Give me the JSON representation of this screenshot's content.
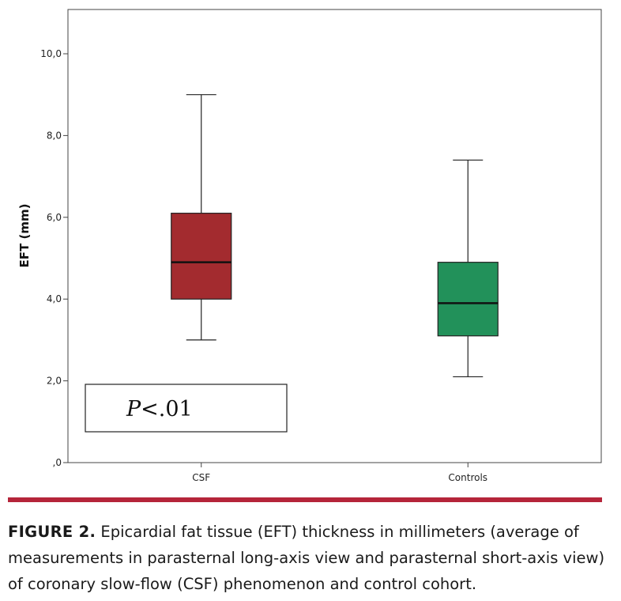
{
  "chart_data": {
    "type": "box",
    "ylabel": "EFT (mm)",
    "xlabel": "",
    "ylim": [
      0,
      11
    ],
    "yticks": [
      0,
      2,
      4,
      6,
      8,
      10
    ],
    "ytick_labels": [
      ",0",
      "2,0",
      "4,0",
      "6,0",
      "8,0",
      "10,0"
    ],
    "categories": [
      "CSF",
      "Controls"
    ],
    "series": [
      {
        "name": "CSF",
        "min": 3.0,
        "q1": 4.0,
        "median": 4.9,
        "q3": 6.1,
        "max": 9.0,
        "color": "#a32b2f"
      },
      {
        "name": "Controls",
        "min": 2.1,
        "q1": 3.1,
        "median": 3.9,
        "q3": 4.9,
        "max": 7.4,
        "color": "#22915a"
      }
    ],
    "annotation": {
      "italic": "P",
      "text": "<.01"
    }
  },
  "caption": {
    "label": "FIGURE 2.",
    "text": " Epicardial fat tissue (EFT) thickness in millimeters (average of measurements in parasternal long-axis view and parasternal short-axis view) of coronary slow-flow (CSF) phenomenon and control cohort."
  },
  "colors": {
    "divider": "#b5253a"
  }
}
